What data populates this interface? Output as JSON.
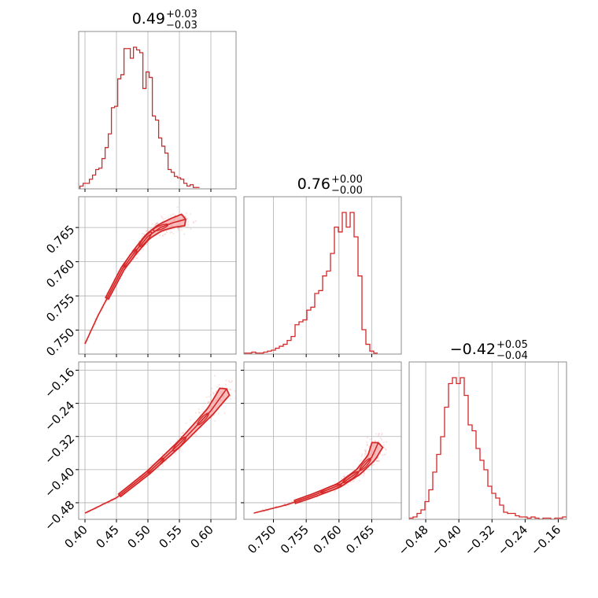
{
  "colors": {
    "line": "#d62728",
    "fill": "#f4a9aa",
    "grid": "#b0b0b0",
    "frame": "#808080"
  },
  "chart_data": [
    {
      "type": "histogram",
      "panel": "p00",
      "title_main": "0.49",
      "title_sup": "+0.03",
      "title_sub": "−0.03",
      "xlim": [
        0.39,
        0.64
      ],
      "grid_x": [
        0.4,
        0.45,
        0.5,
        0.55,
        0.6
      ],
      "bin_start": 0.392,
      "bin_width": 0.005,
      "counts": [
        2,
        4,
        4,
        7,
        10,
        14,
        15,
        22,
        30,
        40,
        59,
        60,
        80,
        83,
        102,
        102,
        95,
        103,
        101,
        99,
        73,
        85,
        81,
        53,
        50,
        37,
        31,
        26,
        14,
        12,
        9,
        8,
        7,
        4,
        2,
        3,
        1,
        1
      ]
    },
    {
      "type": "scatter_contour",
      "panel": "p10",
      "xlim": [
        0.39,
        0.64
      ],
      "ylim": [
        0.7465,
        0.7695
      ],
      "grid_x": [
        0.4,
        0.45,
        0.5,
        0.55,
        0.6
      ],
      "grid_y": [
        0.75,
        0.755,
        0.76,
        0.765
      ],
      "ytick_labels": [
        "0.750",
        "0.755",
        "0.760",
        "0.765"
      ],
      "curve": [
        [
          0.4,
          0.748
        ],
        [
          0.42,
          0.752
        ],
        [
          0.44,
          0.7555
        ],
        [
          0.46,
          0.759
        ],
        [
          0.48,
          0.7615
        ],
        [
          0.5,
          0.7637
        ],
        [
          0.52,
          0.765
        ],
        [
          0.54,
          0.7657
        ],
        [
          0.56,
          0.7662
        ]
      ]
    },
    {
      "type": "histogram",
      "panel": "p11",
      "title_main": "0.76",
      "title_sup": "+0.00",
      "title_sub": "−0.00",
      "xlim": [
        0.7455,
        0.7695
      ],
      "grid_x": [
        0.75,
        0.755,
        0.76,
        0.765
      ],
      "bin_start": 0.7455,
      "bin_width": 0.0006,
      "counts": [
        1,
        1,
        2,
        1,
        1,
        2,
        3,
        4,
        6,
        8,
        10,
        14,
        18,
        30,
        33,
        35,
        45,
        48,
        62,
        65,
        80,
        85,
        103,
        130,
        125,
        145,
        130,
        145,
        120,
        80,
        25,
        10,
        3,
        1
      ]
    },
    {
      "type": "scatter_contour",
      "panel": "p20",
      "xlim": [
        0.39,
        0.64
      ],
      "ylim": [
        -0.52,
        -0.14
      ],
      "grid_x": [
        0.4,
        0.45,
        0.5,
        0.55,
        0.6
      ],
      "grid_y": [
        -0.48,
        -0.4,
        -0.32,
        -0.24,
        -0.16
      ],
      "ytick_labels": [
        "−0.48",
        "−0.40",
        "−0.32",
        "−0.24",
        "−0.16"
      ],
      "xtick_labels": [
        "0.40",
        "0.45",
        "0.50",
        "0.55",
        "0.60"
      ],
      "curve": [
        [
          0.4,
          -0.505
        ],
        [
          0.45,
          -0.468
        ],
        [
          0.5,
          -0.408
        ],
        [
          0.55,
          -0.338
        ],
        [
          0.6,
          -0.258
        ],
        [
          0.625,
          -0.205
        ]
      ]
    },
    {
      "type": "scatter_contour",
      "panel": "p21",
      "xlim": [
        0.7455,
        0.7695
      ],
      "ylim": [
        -0.52,
        -0.14
      ],
      "grid_x": [
        0.75,
        0.755,
        0.76,
        0.765
      ],
      "grid_y": [
        -0.48,
        -0.4,
        -0.32,
        -0.24,
        -0.16
      ],
      "xtick_labels": [
        "0.750",
        "0.755",
        "0.760",
        "0.765"
      ],
      "curve": [
        [
          0.747,
          -0.505
        ],
        [
          0.752,
          -0.485
        ],
        [
          0.756,
          -0.463
        ],
        [
          0.76,
          -0.438
        ],
        [
          0.763,
          -0.405
        ],
        [
          0.765,
          -0.37
        ],
        [
          0.766,
          -0.335
        ]
      ]
    },
    {
      "type": "histogram",
      "panel": "p22",
      "title_main": "−0.42",
      "title_sup": "+0.05",
      "title_sub": "−0.04",
      "xlim": [
        -0.52,
        -0.14
      ],
      "grid_x": [
        -0.48,
        -0.4,
        -0.32,
        -0.24,
        -0.16
      ],
      "xtick_labels": [
        "−0.48",
        "−0.40",
        "−0.32",
        "−0.24",
        "−0.16"
      ],
      "bin_start": -0.52,
      "bin_width": 0.0095,
      "counts": [
        1,
        2,
        5,
        8,
        15,
        25,
        40,
        55,
        70,
        95,
        115,
        120,
        115,
        120,
        105,
        80,
        75,
        60,
        50,
        42,
        28,
        22,
        18,
        12,
        6,
        5,
        5,
        3,
        2,
        2,
        1,
        2,
        1,
        0,
        1,
        1,
        0,
        1,
        1,
        2
      ]
    }
  ]
}
